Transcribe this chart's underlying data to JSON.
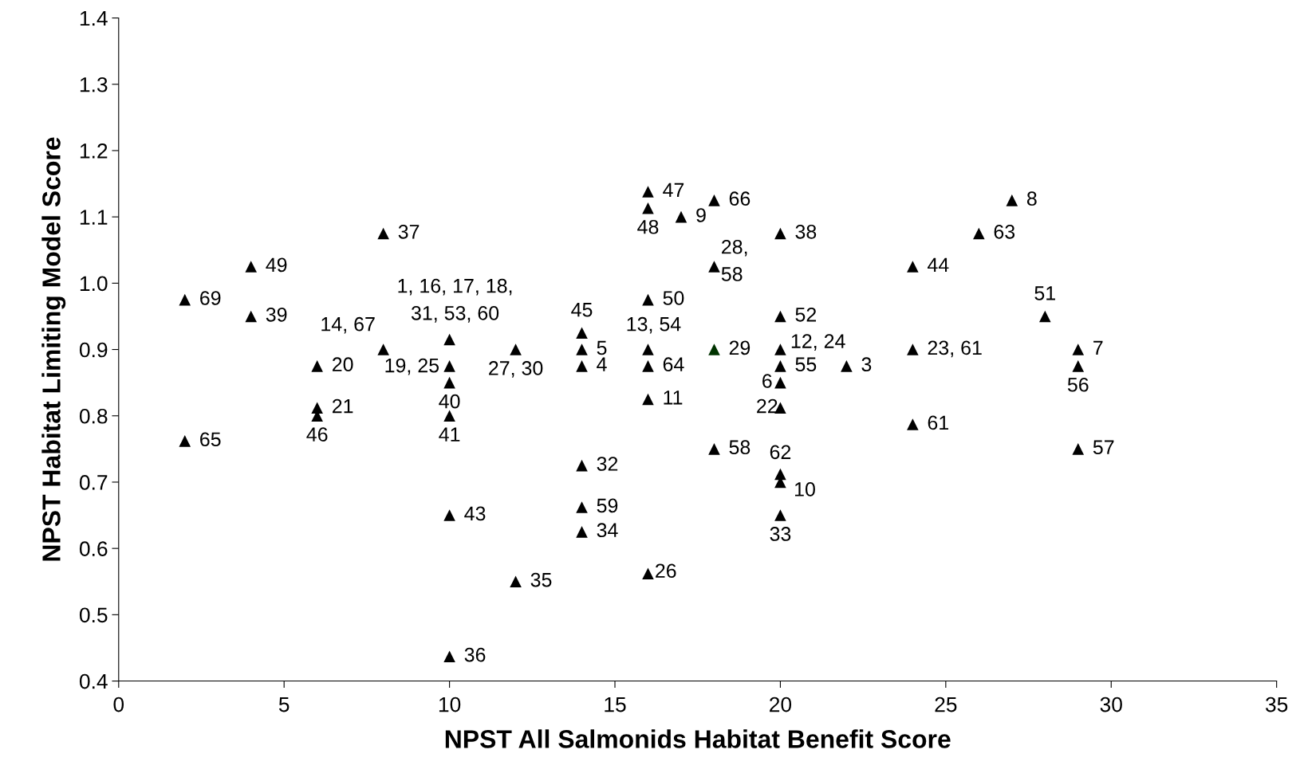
{
  "chart_data": {
    "type": "scatter",
    "xlabel": "NPST All Salmonids Habitat Benefit Score",
    "ylabel": "NPST Habitat Limiting Model Score",
    "xlim": [
      0,
      35
    ],
    "xticks": [
      0,
      5,
      10,
      15,
      20,
      25,
      30,
      35
    ],
    "ylim": [
      0.4,
      1.4
    ],
    "yticks": [
      {
        "value": 0.4,
        "label": "0.4"
      },
      {
        "value": 0.5,
        "label": "0.5"
      },
      {
        "value": 0.6,
        "label": "0.6"
      },
      {
        "value": 0.7,
        "label": "0.7"
      },
      {
        "value": 0.8,
        "label": "0.8"
      },
      {
        "value": 0.9,
        "label": "0.9"
      },
      {
        "value": 1.0,
        "label": "1.0"
      },
      {
        "value": 1.1,
        "label": "1.1"
      },
      {
        "value": 1.2,
        "label": "1.2"
      },
      {
        "value": 1.3,
        "label": "1.3"
      },
      {
        "value": 1.4,
        "label": "1.4"
      }
    ],
    "grid": false,
    "legend": false,
    "marker": "triangle",
    "series": [
      {
        "color": "#000000",
        "x": [
          2,
          4,
          4,
          6,
          6,
          6,
          2,
          8,
          8,
          10,
          10,
          10,
          10,
          10,
          10,
          12,
          12,
          14,
          14,
          14,
          14,
          14,
          14,
          16,
          16,
          17,
          18,
          16,
          16,
          16,
          16,
          16,
          18,
          18,
          20,
          20,
          20,
          20,
          20,
          20,
          20,
          20,
          20,
          22,
          24,
          24,
          24,
          26,
          27,
          28,
          29,
          29,
          29
        ],
        "values": [
          0.975,
          1.025,
          0.95,
          0.875,
          0.812,
          0.8,
          0.762,
          1.075,
          0.9,
          0.915,
          0.875,
          0.85,
          0.8,
          0.65,
          0.437,
          0.9,
          0.55,
          0.925,
          0.9,
          0.875,
          0.725,
          0.662,
          0.625,
          1.138,
          1.113,
          1.1,
          1.125,
          0.975,
          0.9,
          0.875,
          0.825,
          0.562,
          1.025,
          0.75,
          1.075,
          0.95,
          0.9,
          0.875,
          0.85,
          0.812,
          0.712,
          0.7,
          0.65,
          0.875,
          1.025,
          0.9,
          0.787,
          1.075,
          1.125,
          0.95,
          0.9,
          0.875,
          0.75
        ],
        "type": "scatter"
      },
      {
        "color": "#003300",
        "x": [
          18
        ],
        "values": [
          0.9
        ]
      }
    ],
    "annotations": [
      {
        "text": "69",
        "x": 2,
        "y": 0.975
      },
      {
        "text": "49",
        "x": 4,
        "y": 1.025
      },
      {
        "text": "39",
        "x": 4,
        "y": 0.95
      },
      {
        "text": "20",
        "x": 6,
        "y": 0.875
      },
      {
        "text": "21",
        "x": 6,
        "y": 0.812
      },
      {
        "text": "46",
        "x": 6,
        "y": 0.8
      },
      {
        "text": "65",
        "x": 2,
        "y": 0.762
      },
      {
        "text": "37",
        "x": 8,
        "y": 1.075
      },
      {
        "text": "14, 67",
        "x": 8,
        "y": 0.9
      },
      {
        "text": "1, 16, 17, 18,\n31, 53, 60",
        "x": 10,
        "y": 0.915
      },
      {
        "text": "19, 25",
        "x": 10,
        "y": 0.875
      },
      {
        "text": "40",
        "x": 10,
        "y": 0.85
      },
      {
        "text": "41",
        "x": 10,
        "y": 0.8
      },
      {
        "text": "43",
        "x": 10,
        "y": 0.65
      },
      {
        "text": "36",
        "x": 10,
        "y": 0.437
      },
      {
        "text": "27, 30",
        "x": 12,
        "y": 0.9
      },
      {
        "text": "35",
        "x": 12,
        "y": 0.55
      },
      {
        "text": "45",
        "x": 14,
        "y": 0.925
      },
      {
        "text": "5",
        "x": 14,
        "y": 0.9
      },
      {
        "text": "4",
        "x": 14,
        "y": 0.875
      },
      {
        "text": "32",
        "x": 14,
        "y": 0.725
      },
      {
        "text": "59",
        "x": 14,
        "y": 0.662
      },
      {
        "text": "34",
        "x": 14,
        "y": 0.625
      },
      {
        "text": "47",
        "x": 16,
        "y": 1.138
      },
      {
        "text": "48",
        "x": 16,
        "y": 1.113
      },
      {
        "text": "9",
        "x": 17,
        "y": 1.1
      },
      {
        "text": "66",
        "x": 18,
        "y": 1.125
      },
      {
        "text": "50",
        "x": 16,
        "y": 0.975
      },
      {
        "text": "13, 54",
        "x": 16,
        "y": 0.9
      },
      {
        "text": "64",
        "x": 16,
        "y": 0.875
      },
      {
        "text": "11",
        "x": 16,
        "y": 0.825
      },
      {
        "text": "26",
        "x": 16,
        "y": 0.562
      },
      {
        "text": "28,\n58",
        "x": 18,
        "y": 1.025
      },
      {
        "text": "29",
        "x": 18,
        "y": 0.9
      },
      {
        "text": "58",
        "x": 18,
        "y": 0.75
      },
      {
        "text": "38",
        "x": 20,
        "y": 1.075
      },
      {
        "text": "52",
        "x": 20,
        "y": 0.95
      },
      {
        "text": "12, 24",
        "x": 20,
        "y": 0.9
      },
      {
        "text": "55",
        "x": 20,
        "y": 0.875
      },
      {
        "text": "6",
        "x": 20,
        "y": 0.85
      },
      {
        "text": "22",
        "x": 20,
        "y": 0.812
      },
      {
        "text": "62",
        "x": 20,
        "y": 0.712
      },
      {
        "text": "10",
        "x": 20,
        "y": 0.7
      },
      {
        "text": "33",
        "x": 20,
        "y": 0.65
      },
      {
        "text": "3",
        "x": 22,
        "y": 0.875
      },
      {
        "text": "44",
        "x": 24,
        "y": 1.025
      },
      {
        "text": "23, 61",
        "x": 24,
        "y": 0.9
      },
      {
        "text": "61",
        "x": 24,
        "y": 0.787
      },
      {
        "text": "63",
        "x": 26,
        "y": 1.075
      },
      {
        "text": "8",
        "x": 27,
        "y": 1.125
      },
      {
        "text": "51",
        "x": 28,
        "y": 0.95
      },
      {
        "text": "7",
        "x": 29,
        "y": 0.9
      },
      {
        "text": "56",
        "x": 29,
        "y": 0.875
      },
      {
        "text": "57",
        "x": 29,
        "y": 0.75
      }
    ]
  }
}
